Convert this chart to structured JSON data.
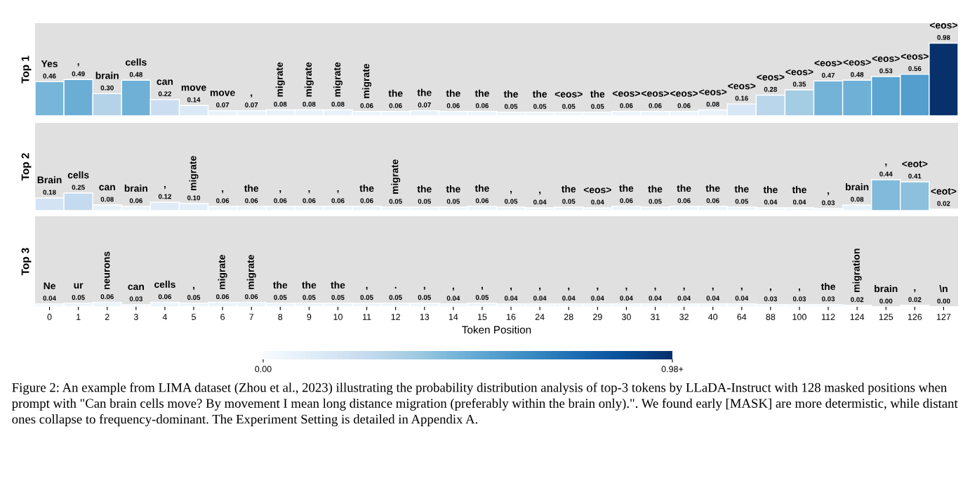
{
  "chart_data": [
    {
      "type": "bar",
      "ylabel": "Top 1",
      "tick_labels": false,
      "data_labels": false,
      "ylim": [
        0,
        1.25
      ],
      "categories": [
        "0",
        "1",
        "2",
        "3",
        "4",
        "5",
        "6",
        "7",
        "8",
        "9",
        "10",
        "11",
        "12",
        "13",
        "14",
        "15",
        "16",
        "24",
        "28",
        "29",
        "30",
        "31",
        "32",
        "40",
        "64",
        "88",
        "100",
        "112",
        "124",
        "125",
        "126",
        "127"
      ],
      "values": [
        0.46,
        0.49,
        0.3,
        0.48,
        0.22,
        0.14,
        0.07,
        0.07,
        0.08,
        0.08,
        0.08,
        0.06,
        0.06,
        0.07,
        0.06,
        0.06,
        0.05,
        0.05,
        0.05,
        0.05,
        0.06,
        0.06,
        0.06,
        0.08,
        0.16,
        0.28,
        0.35,
        0.47,
        0.48,
        0.53,
        0.56,
        0.98
      ],
      "value_labels": [
        "0.46",
        "0.49",
        "0.30",
        "0.48",
        "0.22",
        "0.14",
        "0.07",
        "0.07",
        "0.08",
        "0.08",
        "0.08",
        "0.06",
        "0.06",
        "0.07",
        "0.06",
        "0.06",
        "0.05",
        "0.05",
        "0.05",
        "0.05",
        "0.06",
        "0.06",
        "0.06",
        "0.08",
        "0.16",
        "0.28",
        "0.35",
        "0.47",
        "0.48",
        "0.53",
        "0.56",
        "0.98"
      ],
      "annotations": [
        {
          "text": "Yes",
          "x": "0",
          "y": 0.46
        },
        {
          "text": ",",
          "x": "1",
          "y": 0.49
        },
        {
          "text": "brain",
          "x": "2",
          "y": 0.3
        },
        {
          "text": "cells",
          "x": "3",
          "y": 0.48
        },
        {
          "text": "can",
          "x": "4",
          "y": 0.22
        },
        {
          "text": "move",
          "x": "5",
          "y": 0.14
        },
        {
          "text": "move",
          "x": "6",
          "y": 0.07
        },
        {
          "text": ",",
          "x": "7",
          "y": 0.07
        },
        {
          "text": "migrate",
          "x": "8",
          "y": 0.08
        },
        {
          "text": "migrate",
          "x": "9",
          "y": 0.08
        },
        {
          "text": "migrate",
          "x": "10",
          "y": 0.08
        },
        {
          "text": "migrate",
          "x": "11",
          "y": 0.06
        },
        {
          "text": "the",
          "x": "12",
          "y": 0.06
        },
        {
          "text": "the",
          "x": "13",
          "y": 0.07
        },
        {
          "text": "the",
          "x": "14",
          "y": 0.06
        },
        {
          "text": "the",
          "x": "15",
          "y": 0.06
        },
        {
          "text": "the",
          "x": "16",
          "y": 0.05
        },
        {
          "text": "the",
          "x": "24",
          "y": 0.05
        },
        {
          "text": "<eos>",
          "x": "28",
          "y": 0.05
        },
        {
          "text": "the",
          "x": "29",
          "y": 0.05
        },
        {
          "text": "<eos>",
          "x": "30",
          "y": 0.06
        },
        {
          "text": "<eos>",
          "x": "31",
          "y": 0.06
        },
        {
          "text": "<eos>",
          "x": "32",
          "y": 0.06
        },
        {
          "text": "<eos>",
          "x": "40",
          "y": 0.08
        },
        {
          "text": "<eos>",
          "x": "64",
          "y": 0.16
        },
        {
          "text": "<eos>",
          "x": "88",
          "y": 0.28
        },
        {
          "text": "<eos>",
          "x": "100",
          "y": 0.35
        },
        {
          "text": "<eos>",
          "x": "112",
          "y": 0.47
        },
        {
          "text": "<eos>",
          "x": "124",
          "y": 0.48
        },
        {
          "text": "<eos>",
          "x": "125",
          "y": 0.53
        },
        {
          "text": "<eos>",
          "x": "126",
          "y": 0.56
        },
        {
          "text": "<eos>",
          "x": "127",
          "y": 0.98
        }
      ]
    },
    {
      "type": "bar",
      "ylabel": "Top 2",
      "tick_labels": false,
      "ylim": [
        0,
        1.25
      ],
      "categories": [
        "0",
        "1",
        "2",
        "3",
        "4",
        "5",
        "6",
        "7",
        "8",
        "9",
        "10",
        "11",
        "12",
        "13",
        "14",
        "15",
        "16",
        "24",
        "28",
        "29",
        "30",
        "31",
        "32",
        "40",
        "64",
        "88",
        "100",
        "112",
        "124",
        "125",
        "126",
        "127"
      ],
      "values": [
        0.18,
        0.25,
        0.08,
        0.06,
        0.12,
        0.1,
        0.06,
        0.06,
        0.06,
        0.06,
        0.06,
        0.06,
        0.05,
        0.05,
        0.05,
        0.06,
        0.05,
        0.04,
        0.05,
        0.04,
        0.06,
        0.05,
        0.06,
        0.06,
        0.05,
        0.04,
        0.04,
        0.03,
        0.08,
        0.44,
        0.41,
        0.02
      ],
      "value_labels": [
        "0.18",
        "0.25",
        "0.08",
        "0.06",
        "0.12",
        "0.10",
        "0.06",
        "0.06",
        "0.06",
        "0.06",
        "0.06",
        "0.06",
        "0.05",
        "0.05",
        "0.05",
        "0.06",
        "0.05",
        "0.04",
        "0.05",
        "0.04",
        "0.06",
        "0.05",
        "0.06",
        "0.06",
        "0.05",
        "0.04",
        "0.04",
        "0.03",
        "0.08",
        "0.44",
        "0.41",
        "0.02"
      ],
      "annotations": [
        {
          "text": "Brain",
          "x": "0",
          "y": 0.18
        },
        {
          "text": "cells",
          "x": "1",
          "y": 0.25
        },
        {
          "text": "can",
          "x": "2",
          "y": 0.08
        },
        {
          "text": "brain",
          "x": "3",
          "y": 0.06
        },
        {
          "text": ",",
          "x": "4",
          "y": 0.12
        },
        {
          "text": "migrate",
          "x": "5",
          "y": 0.1
        },
        {
          "text": ",",
          "x": "6",
          "y": 0.06
        },
        {
          "text": "the",
          "x": "7",
          "y": 0.06
        },
        {
          "text": ",",
          "x": "8",
          "y": 0.06
        },
        {
          "text": ",",
          "x": "9",
          "y": 0.06
        },
        {
          "text": ",",
          "x": "10",
          "y": 0.06
        },
        {
          "text": "the",
          "x": "11",
          "y": 0.06
        },
        {
          "text": "migrate",
          "x": "12",
          "y": 0.05
        },
        {
          "text": "the",
          "x": "13",
          "y": 0.05
        },
        {
          "text": "the",
          "x": "14",
          "y": 0.05
        },
        {
          "text": "the",
          "x": "15",
          "y": 0.06
        },
        {
          "text": ",",
          "x": "16",
          "y": 0.05
        },
        {
          "text": ",",
          "x": "24",
          "y": 0.04
        },
        {
          "text": "the",
          "x": "28",
          "y": 0.05
        },
        {
          "text": "<eos>",
          "x": "29",
          "y": 0.04
        },
        {
          "text": "the",
          "x": "30",
          "y": 0.06
        },
        {
          "text": "the",
          "x": "31",
          "y": 0.05
        },
        {
          "text": "the",
          "x": "32",
          "y": 0.06
        },
        {
          "text": "the",
          "x": "40",
          "y": 0.06
        },
        {
          "text": "the",
          "x": "64",
          "y": 0.05
        },
        {
          "text": "the",
          "x": "88",
          "y": 0.04
        },
        {
          "text": "the",
          "x": "100",
          "y": 0.04
        },
        {
          "text": ",",
          "x": "112",
          "y": 0.03
        },
        {
          "text": "brain",
          "x": "124",
          "y": 0.08
        },
        {
          "text": ",",
          "x": "125",
          "y": 0.44
        },
        {
          "text": "<eot>",
          "x": "126",
          "y": 0.41
        },
        {
          "text": "<eot>",
          "x": "127",
          "y": 0.02
        }
      ]
    },
    {
      "type": "bar",
      "ylabel": "Top 3",
      "xlabel": "Token Position",
      "tick_labels": "x",
      "ylim": [
        0,
        1.25
      ],
      "clim": [
        0,
        0.98
      ],
      "cticks": [
        {
          "value": 0,
          "label": "0.00"
        },
        {
          "value": 0.98,
          "label": "0.98+"
        }
      ],
      "categories": [
        "0",
        "1",
        "2",
        "3",
        "4",
        "5",
        "6",
        "7",
        "8",
        "9",
        "10",
        "11",
        "12",
        "13",
        "14",
        "15",
        "16",
        "24",
        "28",
        "29",
        "30",
        "31",
        "32",
        "40",
        "64",
        "88",
        "100",
        "112",
        "124",
        "125",
        "126",
        "127"
      ],
      "values": [
        0.04,
        0.05,
        0.06,
        0.03,
        0.06,
        0.05,
        0.06,
        0.06,
        0.05,
        0.05,
        0.05,
        0.05,
        0.05,
        0.05,
        0.04,
        0.05,
        0.04,
        0.04,
        0.04,
        0.04,
        0.04,
        0.04,
        0.04,
        0.04,
        0.04,
        0.03,
        0.03,
        0.03,
        0.02,
        0.0,
        0.02,
        0.0
      ],
      "value_labels": [
        "0.04",
        "0.05",
        "0.06",
        "0.03",
        "0.06",
        "0.05",
        "0.06",
        "0.06",
        "0.05",
        "0.05",
        "0.05",
        "0.05",
        "0.05",
        "0.05",
        "0.04",
        "0.05",
        "0.04",
        "0.04",
        "0.04",
        "0.04",
        "0.04",
        "0.04",
        "0.04",
        "0.04",
        "0.04",
        "0.03",
        "0.03",
        "0.03",
        "0.02",
        "0.00",
        "0.02",
        "0.00"
      ],
      "annotations": [
        {
          "text": "Ne",
          "x": "0",
          "y": 0.04
        },
        {
          "text": "ur",
          "x": "1",
          "y": 0.05
        },
        {
          "text": "neurons",
          "x": "2",
          "y": 0.06
        },
        {
          "text": "can",
          "x": "3",
          "y": 0.03
        },
        {
          "text": "cells",
          "x": "4",
          "y": 0.06
        },
        {
          "text": ",",
          "x": "5",
          "y": 0.05
        },
        {
          "text": "migrate",
          "x": "6",
          "y": 0.06
        },
        {
          "text": "migrate",
          "x": "7",
          "y": 0.06
        },
        {
          "text": "the",
          "x": "8",
          "y": 0.05
        },
        {
          "text": "the",
          "x": "9",
          "y": 0.05
        },
        {
          "text": "the",
          "x": "10",
          "y": 0.05
        },
        {
          "text": ",",
          "x": "11",
          "y": 0.05
        },
        {
          "text": ".",
          "x": "12",
          "y": 0.05
        },
        {
          "text": ",",
          "x": "13",
          "y": 0.05
        },
        {
          "text": ",",
          "x": "14",
          "y": 0.04
        },
        {
          "text": ",",
          "x": "15",
          "y": 0.05
        },
        {
          "text": ",",
          "x": "16",
          "y": 0.04
        },
        {
          "text": ",",
          "x": "24",
          "y": 0.04
        },
        {
          "text": ",",
          "x": "28",
          "y": 0.04
        },
        {
          "text": ",",
          "x": "29",
          "y": 0.04
        },
        {
          "text": ",",
          "x": "30",
          "y": 0.04
        },
        {
          "text": ",",
          "x": "31",
          "y": 0.04
        },
        {
          "text": ",",
          "x": "32",
          "y": 0.04
        },
        {
          "text": ",",
          "x": "40",
          "y": 0.04
        },
        {
          "text": ",",
          "x": "64",
          "y": 0.04
        },
        {
          "text": ",",
          "x": "88",
          "y": 0.03
        },
        {
          "text": ",",
          "x": "100",
          "y": 0.03
        },
        {
          "text": "the",
          "x": "112",
          "y": 0.03
        },
        {
          "text": "migration",
          "x": "124",
          "y": 0.02
        },
        {
          "text": "brain",
          "x": "125",
          "y": 0.0
        },
        {
          "text": ",",
          "x": "126",
          "y": 0.02
        },
        {
          "text": "\\n",
          "x": "127",
          "y": 0.0
        },
        "Figure 2: An example from LIMA dataset (Zhou et al., 2023) illustrating the probability distribution analysis of top-3 tokens by LLaDA-Instruct with 128 masked positions when prompt with \"Can brain cells move? By movement I mean long distance migration (preferably within the brain only).\". We found early [MASK] are more determistic, while distant ones collapse to frequency-dominant. The Experiment Setting is detailed in Appendix A."
      ]
    }
  ]
}
